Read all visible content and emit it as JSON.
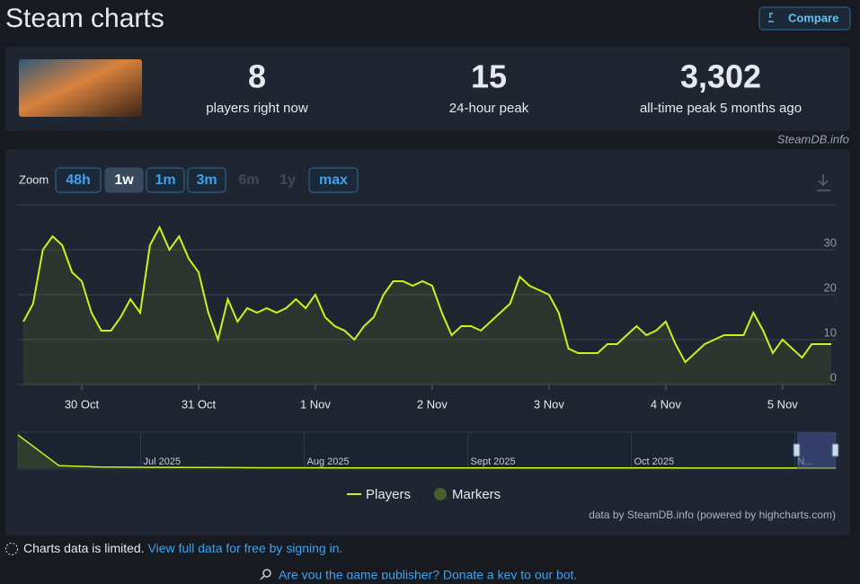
{
  "header": {
    "title": "Steam charts",
    "compare": "Compare"
  },
  "stats": [
    {
      "value": "8",
      "label": "players right now"
    },
    {
      "value": "15",
      "label": "24-hour peak"
    },
    {
      "value": "3,302",
      "label": "all-time peak 5 months ago"
    }
  ],
  "credit": "SteamDB.info",
  "zoom": {
    "label": "Zoom",
    "buttons": [
      "48h",
      "1w",
      "1m",
      "3m",
      "6m",
      "1y",
      "max"
    ]
  },
  "chart_data": [
    {
      "type": "line",
      "categories": [
        null,
        null,
        null,
        null,
        null,
        null,
        "30 Oct",
        null,
        null,
        null,
        null,
        null,
        null,
        null,
        null,
        null,
        null,
        null,
        "31 Oct",
        null,
        null,
        null,
        null,
        null,
        null,
        null,
        null,
        null,
        null,
        null,
        "1 Nov",
        null,
        null,
        null,
        null,
        null,
        null,
        null,
        null,
        null,
        null,
        null,
        "2 Nov",
        null,
        null,
        null,
        null,
        null,
        null,
        null,
        null,
        null,
        null,
        null,
        "3 Nov",
        null,
        null,
        null,
        null,
        null,
        null,
        null,
        null,
        null,
        null,
        null,
        "4 Nov",
        null,
        null,
        null,
        null,
        null,
        null,
        null,
        null,
        null,
        null,
        null,
        "5 Nov",
        null,
        null,
        null,
        null,
        null
      ],
      "series": [
        {
          "name": "Players",
          "color": "#c6f41d",
          "values": [
            14,
            18,
            30,
            33,
            31,
            25,
            23,
            16,
            12,
            12,
            15,
            19,
            16,
            31,
            35,
            30,
            33,
            28,
            25,
            16,
            10,
            19,
            14,
            17,
            16,
            17,
            16,
            17,
            19,
            17,
            20,
            15,
            13,
            12,
            10,
            13,
            15,
            20,
            23,
            23,
            22,
            23,
            22,
            16,
            11,
            13,
            13,
            12,
            14,
            16,
            18,
            24,
            22,
            21,
            20,
            16,
            8,
            7,
            7,
            7,
            9,
            9,
            11,
            13,
            11,
            12,
            14,
            9,
            5,
            7,
            9,
            10,
            11,
            11,
            11,
            16,
            12,
            7,
            10,
            8,
            6,
            9,
            9,
            9
          ]
        }
      ],
      "markers": {
        "name": "Markers",
        "color": "#4b5e2e"
      },
      "ylim": [
        0,
        40
      ],
      "yticks": [
        0,
        10,
        20,
        30
      ],
      "grid": true,
      "source": "data by SteamDB.info (powered by highcharts.com)"
    },
    {
      "type": "navigator",
      "categories": [
        null,
        null,
        null,
        "Jul 2025",
        null,
        null,
        null,
        "Aug 2025",
        null,
        null,
        null,
        "Sept 2025",
        null,
        null,
        null,
        "Oct 2025",
        null,
        null,
        null,
        "N...",
        null
      ],
      "values": [
        3302,
        250,
        120,
        80,
        60,
        50,
        40,
        35,
        30,
        30,
        25,
        25,
        20,
        20,
        18,
        15,
        15,
        12,
        12,
        10,
        10
      ],
      "color": "#c6f41d",
      "ylim": [
        0,
        3400
      ]
    }
  ],
  "footer": {
    "limited": "Charts data is limited.",
    "link": "View full data for free by signing in.",
    "publisher": "Are you the game publisher? Donate a key to our bot."
  }
}
